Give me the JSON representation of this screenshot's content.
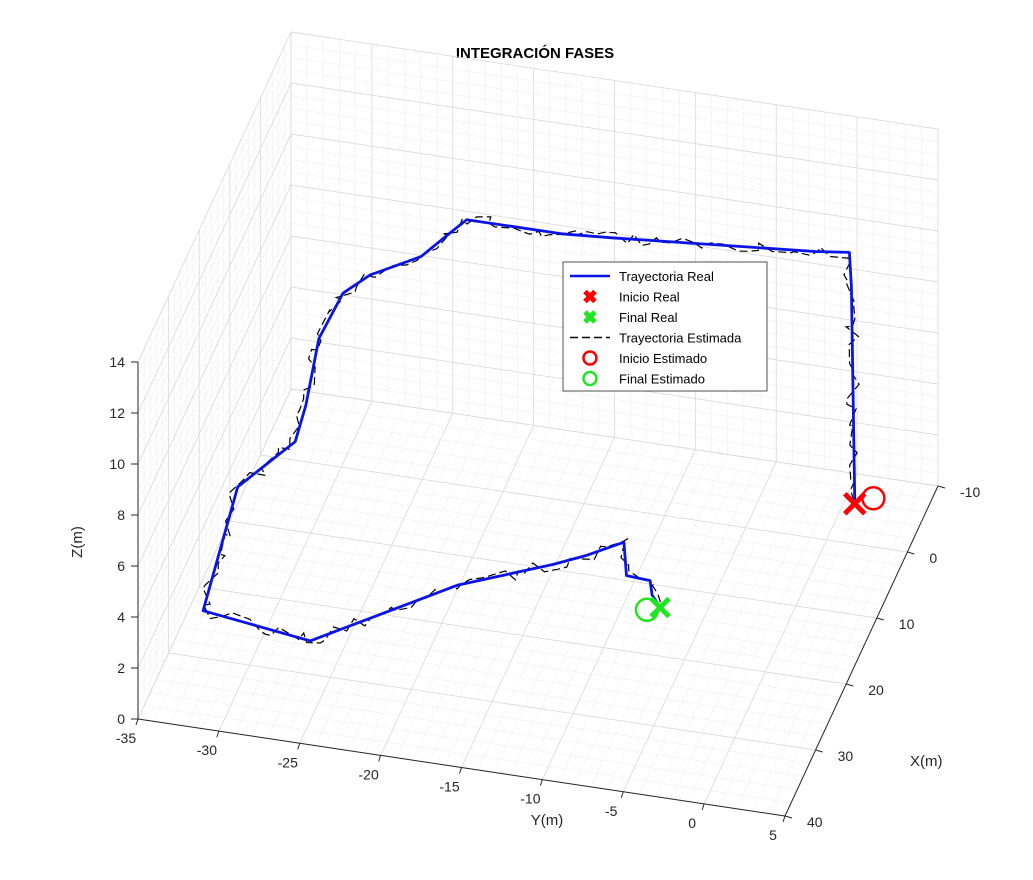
{
  "chart_data": {
    "type": "line3d",
    "title": "INTEGRACIÓN FASES",
    "xlabel": "X(m)",
    "ylabel": "Y(m)",
    "zlabel": "Z(m)",
    "xlim": [
      -10,
      40
    ],
    "ylim": [
      -35,
      5
    ],
    "zlim": [
      0,
      14
    ],
    "x_ticks": [
      "-10",
      "0",
      "10",
      "20",
      "30",
      "40"
    ],
    "y_ticks": [
      "-35",
      "-30",
      "-25",
      "-20",
      "-15",
      "-10",
      "-5",
      "0",
      "5"
    ],
    "z_ticks": [
      "0",
      "2",
      "4",
      "6",
      "8",
      "10",
      "12",
      "14"
    ],
    "grid": true,
    "legend_position": "center-right",
    "colors": {
      "real": "#0a14e6",
      "estimated": "#000000",
      "start": "#ff0000",
      "end": "#1fe61f",
      "axis": "#262626",
      "grid": "#dcdcdc"
    },
    "legend": [
      {
        "label": "Trayectoria Real",
        "symbol": "line-solid",
        "color": "#0a14e6"
      },
      {
        "label": "Inicio Real",
        "symbol": "x-marker",
        "color": "#ff0000"
      },
      {
        "label": "Final Real",
        "symbol": "x-marker",
        "color": "#1fe61f"
      },
      {
        "label": "Trayectoria Estimada",
        "symbol": "line-dashed",
        "color": "#000000"
      },
      {
        "label": "Inicio Estimado",
        "symbol": "circle-marker",
        "color": "#ff0000"
      },
      {
        "label": "Final Estimado",
        "symbol": "circle-marker",
        "color": "#1fe61f"
      }
    ],
    "series": [
      {
        "name": "Trayectoria Real",
        "points": [
          [
            -5.0,
            0.8,
            0.2
          ],
          [
            -3.9,
            0.8,
            9.0
          ],
          [
            -2.2,
            1.0,
            10.8
          ],
          [
            -1.6,
            -1.0,
            10.8
          ],
          [
            1.5,
            -13.0,
            11.0
          ],
          [
            2.0,
            -16.0,
            11.0
          ],
          [
            1.3,
            -22.0,
            10.8
          ],
          [
            3.0,
            -22.8,
            10.6
          ],
          [
            4.6,
            -24.2,
            10.0
          ],
          [
            7.6,
            -26.8,
            9.8
          ],
          [
            10.0,
            -28.0,
            9.6
          ],
          [
            12.6,
            -29.0,
            8.4
          ],
          [
            13.7,
            -29.6,
            6.0
          ],
          [
            14.0,
            -30.2,
            4.6
          ],
          [
            16.0,
            -31.1,
            4.4
          ],
          [
            18.0,
            -33.0,
            3.6
          ],
          [
            24.0,
            -34.0,
            0.2
          ],
          [
            26.0,
            -27.0,
            0.2
          ],
          [
            15.0,
            -20.0,
            0.2
          ],
          [
            10.0,
            -15.0,
            0.2
          ],
          [
            9.4,
            -13.0,
            0.6
          ],
          [
            8.6,
            -10.9,
            1.1
          ],
          [
            10.4,
            -10.4,
            0.3
          ],
          [
            10.6,
            -8.9,
            0.3
          ],
          [
            12.6,
            -8.4,
            0.3
          ],
          [
            14.2,
            -7.6,
            0.3
          ]
        ]
      }
    ],
    "markers": [
      {
        "name": "Inicio Real",
        "x": -5.0,
        "y": 0.8,
        "z": 0.2
      },
      {
        "name": "Final Real",
        "x": 14.2,
        "y": -7.6,
        "z": 0.3
      },
      {
        "name": "Inicio Estimado",
        "x": -5.8,
        "y": 1.8,
        "z": 0.3
      },
      {
        "name": "Final Estimado",
        "x": 14.8,
        "y": -8.3,
        "z": 0.3
      }
    ]
  }
}
